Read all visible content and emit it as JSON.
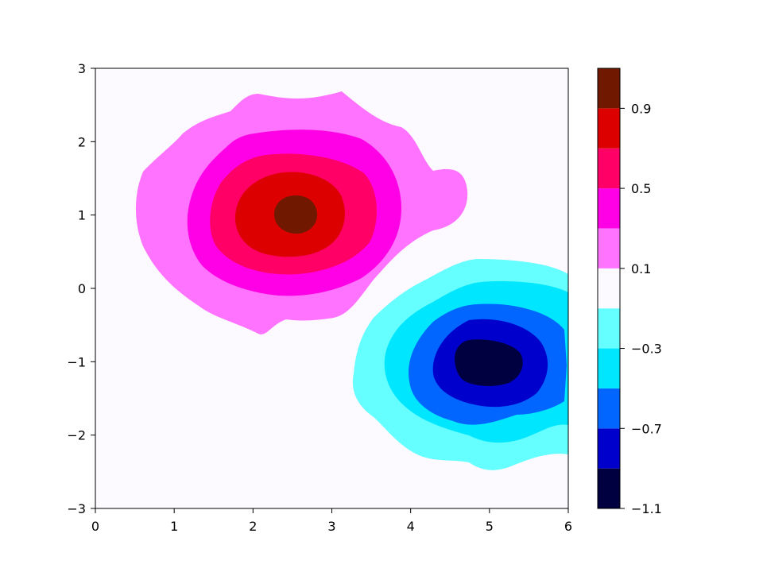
{
  "chart_data": {
    "type": "contourf",
    "title": "",
    "xlabel": "",
    "ylabel": "",
    "xlim": [
      0,
      6
    ],
    "ylim": [
      -3,
      3
    ],
    "x_ticks": [
      "0",
      "1",
      "2",
      "3",
      "4",
      "5",
      "6"
    ],
    "y_ticks": [
      "3",
      "2",
      "1",
      "0",
      "−1",
      "−2",
      "−3"
    ],
    "colorbar": {
      "range": [
        -1.1,
        1.1
      ],
      "tick_labels": [
        "0.9",
        "0.5",
        "0.1",
        "−0.3",
        "−0.7",
        "−1.1"
      ],
      "levels": [
        -1.1,
        -0.9,
        -0.7,
        -0.5,
        -0.3,
        -0.1,
        0.1,
        0.3,
        0.5,
        0.7,
        0.9,
        1.1
      ],
      "colors": [
        "#000040",
        "#0000cc",
        "#0066ff",
        "#00e6ff",
        "#66ffff",
        "#fcfaff",
        "#ff73ff",
        "#ff00e6",
        "#ff0066",
        "#dd0000",
        "#701800"
      ]
    },
    "features": [
      {
        "name": "positive-peak",
        "center": [
          2.55,
          1.0
        ],
        "peak": 1.0
      },
      {
        "name": "negative-trough",
        "center": [
          4.95,
          -1.0
        ],
        "peak": -1.0
      }
    ],
    "grid": false
  }
}
